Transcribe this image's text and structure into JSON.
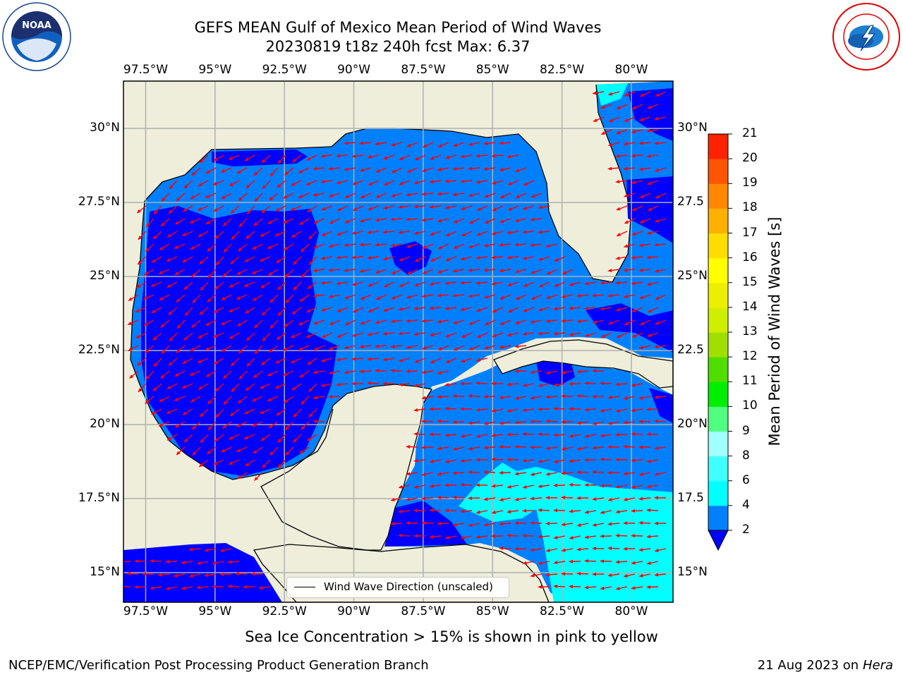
{
  "title": {
    "line1": "GEFS MEAN Gulf of Mexico Mean Period of Wind Waves",
    "line2": "20230819 t18z 240h fcst   Max: 6.37"
  },
  "map": {
    "lon_range": [
      -98.3,
      -78.5
    ],
    "lat_range": [
      14.0,
      31.6
    ],
    "grid": true,
    "lon_ticks": [
      {
        "value": -97.5,
        "label": "97.5°W"
      },
      {
        "value": -95,
        "label": "95°W"
      },
      {
        "value": -92.5,
        "label": "92.5°W"
      },
      {
        "value": -90,
        "label": "90°W"
      },
      {
        "value": -87.5,
        "label": "87.5°W"
      },
      {
        "value": -85,
        "label": "85°W"
      },
      {
        "value": -82.5,
        "label": "82.5°W"
      },
      {
        "value": -80,
        "label": "80°W"
      }
    ],
    "lat_ticks_left": [
      {
        "value": 30,
        "label": "30°N"
      },
      {
        "value": 27.5,
        "label": "27.5°N"
      },
      {
        "value": 25,
        "label": "25°N"
      },
      {
        "value": 22.5,
        "label": "22.5°N"
      },
      {
        "value": 20,
        "label": "20°N"
      },
      {
        "value": 17.5,
        "label": "17.5°N"
      },
      {
        "value": 15,
        "label": "15°N"
      }
    ],
    "lat_ticks_right": [
      {
        "value": 30,
        "label": "30°N"
      },
      {
        "value": 27.5,
        "label": "27.5"
      },
      {
        "value": 25,
        "label": "25°N"
      },
      {
        "value": 22.5,
        "label": "22.5"
      },
      {
        "value": 20,
        "label": "20°N"
      },
      {
        "value": 17.5,
        "label": "17.5"
      },
      {
        "value": 15,
        "label": "15°N"
      }
    ],
    "land_color": "#efeedb",
    "coast_color": "#000000",
    "grid_color": "#b0b0b0",
    "vector_color": "#ff0000",
    "vector_direction": "toward the west-southwest"
  },
  "legend": {
    "label": "Wind Wave Direction (unscaled)"
  },
  "colorbar": {
    "label": "Mean Period of Wind Waves [s]",
    "levels": [
      2,
      4,
      6,
      8,
      9,
      10,
      11,
      12,
      13,
      14,
      15,
      16,
      17,
      18,
      19,
      20,
      21
    ],
    "colors": [
      "#0080ff",
      "#00ffff",
      "#40ffff",
      "#a0ffff",
      "#50ff80",
      "#00ee00",
      "#50dd00",
      "#a0e000",
      "#d0ee00",
      "#eeee00",
      "#ffff00",
      "#ffdd00",
      "#ffb000",
      "#ff8800",
      "#ff5500",
      "#ff2200"
    ],
    "under_color": "#0000ff"
  },
  "footer": {
    "sea_ice_note": "Sea Ice Concentration > 15% is shown in pink to yellow",
    "producer": "NCEP/EMC/Verification Post Processing Product Generation Branch",
    "run_date": "21 Aug 2023 on",
    "host": "Hera"
  },
  "logos": {
    "left": "noaa-logo",
    "right": "nws-logo"
  }
}
